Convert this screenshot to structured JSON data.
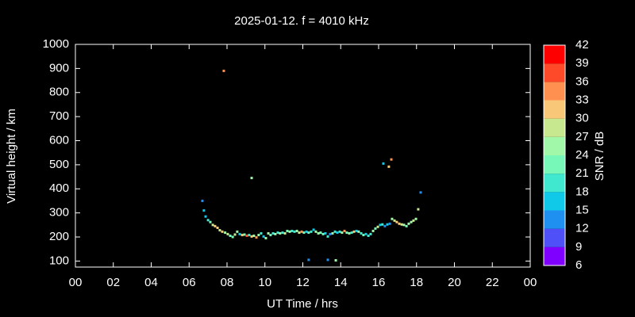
{
  "chart_data": {
    "type": "scatter",
    "title": "2025-01-12. f = 4010 kHz",
    "x_label": "UT Time / hrs",
    "y_label": "Virtual height / km",
    "xlim": [
      0,
      24
    ],
    "ylim": [
      75,
      1000
    ],
    "xticks": [
      {
        "value": 0,
        "label": "00"
      },
      {
        "value": 2,
        "label": "02"
      },
      {
        "value": 4,
        "label": "04"
      },
      {
        "value": 6,
        "label": "06"
      },
      {
        "value": 8,
        "label": "08"
      },
      10,
      12,
      14,
      16,
      18,
      20,
      22,
      {
        "value": 24,
        "label": "00"
      }
    ],
    "yticks": [
      100,
      200,
      300,
      400,
      500,
      600,
      700,
      800,
      900,
      1000
    ],
    "x": [
      7.83,
      9.3,
      6.7,
      6.78,
      6.87,
      7.0,
      7.12,
      7.25,
      7.37,
      7.5,
      7.62,
      7.75,
      7.9,
      8.04,
      8.17,
      8.3,
      8.42,
      8.54,
      8.67,
      8.8,
      8.92,
      9.05,
      9.17,
      9.3,
      9.42,
      9.55,
      9.67,
      9.8,
      9.93,
      10.05,
      10.18,
      10.3,
      10.43,
      10.55,
      10.68,
      10.8,
      10.93,
      11.06,
      11.18,
      11.31,
      11.43,
      11.56,
      11.69,
      11.81,
      11.94,
      12.06,
      12.19,
      12.31,
      12.44,
      12.57,
      12.69,
      12.82,
      12.94,
      13.07,
      13.19,
      13.32,
      13.44,
      13.57,
      13.7,
      13.82,
      13.95,
      14.07,
      14.2,
      14.32,
      14.45,
      14.58,
      14.7,
      14.83,
      14.95,
      15.08,
      15.2,
      15.33,
      15.46,
      15.58,
      15.71,
      15.83,
      15.96,
      16.08,
      16.2,
      16.33,
      16.46,
      16.59,
      16.71,
      16.84,
      16.96,
      17.09,
      17.22,
      17.34,
      17.47,
      17.59,
      17.72,
      17.84,
      17.97,
      18.09,
      18.22,
      16.25,
      16.54,
      16.67,
      12.31,
      13.32,
      13.74
    ],
    "y": [
      890,
      445,
      350,
      310,
      285,
      270,
      262,
      250,
      245,
      238,
      228,
      222,
      218,
      212,
      205,
      200,
      210,
      222,
      212,
      208,
      210,
      205,
      208,
      202,
      205,
      198,
      208,
      215,
      202,
      195,
      215,
      208,
      215,
      212,
      218,
      215,
      218,
      215,
      225,
      222,
      225,
      222,
      225,
      218,
      222,
      218,
      222,
      218,
      222,
      230,
      222,
      215,
      218,
      212,
      215,
      202,
      212,
      215,
      222,
      218,
      222,
      218,
      225,
      218,
      215,
      218,
      222,
      225,
      222,
      215,
      208,
      212,
      205,
      212,
      225,
      235,
      242,
      250,
      252,
      245,
      252,
      255,
      275,
      268,
      262,
      255,
      252,
      250,
      245,
      255,
      262,
      268,
      275,
      315,
      385,
      505,
      492,
      522,
      105,
      105,
      103
    ],
    "snr": [
      34,
      25,
      14,
      16,
      17,
      20,
      22,
      27,
      31,
      30,
      29,
      31,
      25,
      27,
      23,
      21,
      27,
      24,
      16,
      30,
      22,
      36,
      19,
      30,
      24,
      33,
      25,
      20,
      16,
      24,
      26,
      22,
      19,
      26,
      20,
      24,
      18,
      27,
      22,
      24,
      20,
      18,
      24,
      27,
      33,
      21,
      16,
      23,
      20,
      17,
      24,
      25,
      21,
      22,
      15,
      19,
      12,
      26,
      20,
      16,
      18,
      26,
      33,
      21,
      24,
      18,
      31,
      16,
      24,
      20,
      21,
      17,
      18,
      20,
      24,
      21,
      27,
      16,
      20,
      14,
      15,
      14,
      26,
      27,
      30,
      30,
      27,
      26,
      22,
      24,
      26,
      28,
      24,
      27,
      12,
      15,
      31,
      33,
      14,
      13,
      25
    ],
    "colorbar": {
      "label": "SNR / dB",
      "zlim": [
        6,
        42
      ],
      "ticks": [
        6,
        9,
        12,
        15,
        18,
        21,
        24,
        27,
        30,
        33,
        36,
        39,
        42
      ],
      "colors": [
        "#8000ff",
        "#5050f8",
        "#2090f0",
        "#10c8e8",
        "#40e8d0",
        "#78f8b8",
        "#a0f8a8",
        "#c8e890",
        "#f8c878",
        "#ff9050",
        "#ff4a2a",
        "#ff0000"
      ]
    }
  }
}
